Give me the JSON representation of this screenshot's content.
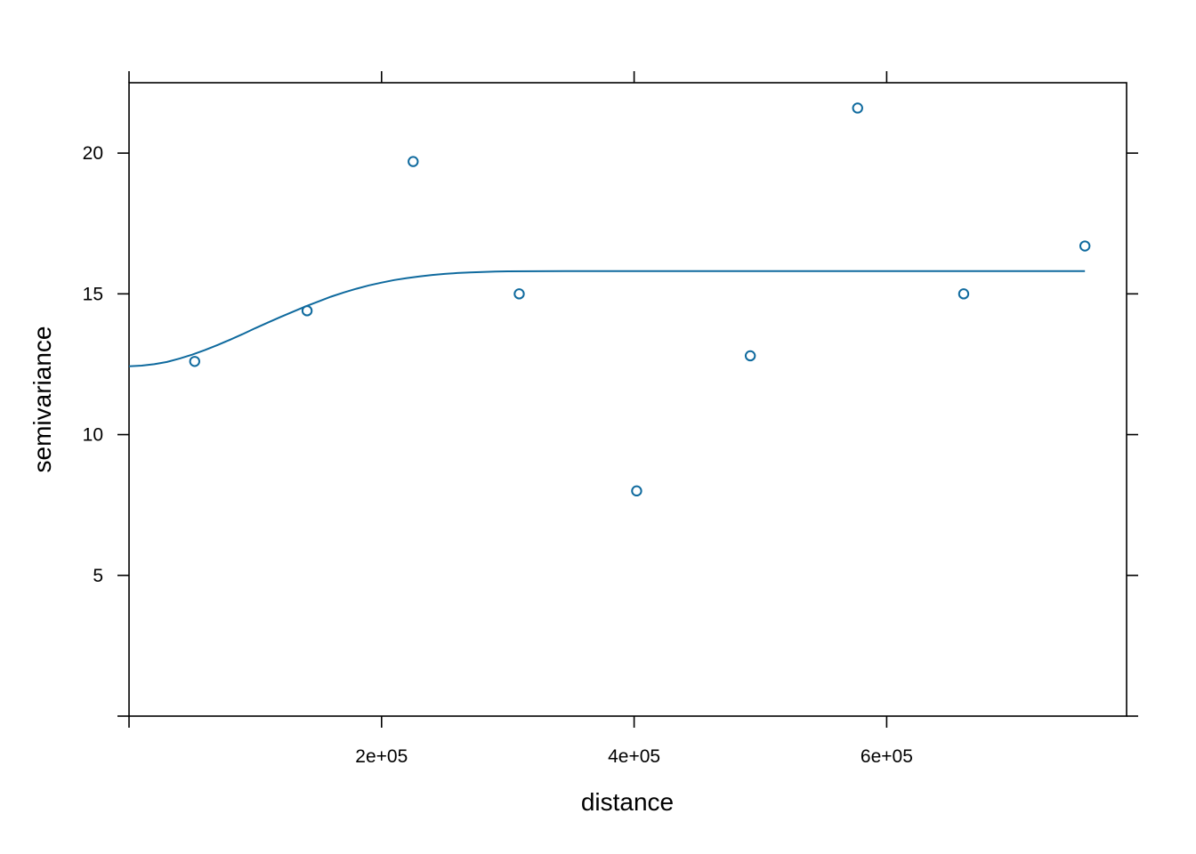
{
  "chart_data": {
    "type": "scatter",
    "xlabel": "distance",
    "ylabel": "semivariance",
    "xlim": [
      0,
      790000
    ],
    "ylim": [
      0,
      22.5
    ],
    "x_ticks": [
      200000,
      400000,
      600000
    ],
    "x_tick_labels": [
      "2e+05",
      "4e+05",
      "6e+05"
    ],
    "y_ticks": [
      5,
      10,
      15,
      20
    ],
    "y_tick_labels": [
      "5",
      "10",
      "15",
      "20"
    ],
    "grid": false,
    "series": [
      {
        "type": "points",
        "color": "#0F6A9E",
        "x": [
          52000,
          141000,
          225000,
          309000,
          402000,
          492000,
          577000,
          661000,
          757000
        ],
        "y": [
          12.6,
          14.4,
          19.7,
          15.0,
          8.0,
          12.8,
          21.6,
          15.0,
          16.7
        ]
      },
      {
        "type": "line",
        "color": "#0F6A9E",
        "x": [
          0,
          10000,
          20000,
          30000,
          40000,
          50000,
          60000,
          70000,
          80000,
          90000,
          100000,
          110000,
          120000,
          130000,
          140000,
          150000,
          160000,
          170000,
          180000,
          190000,
          200000,
          210000,
          220000,
          230000,
          240000,
          250000,
          260000,
          270000,
          280000,
          290000,
          300000,
          350000,
          400000,
          500000,
          600000,
          700000,
          757000
        ],
        "y": [
          12.43,
          12.45,
          12.5,
          12.58,
          12.7,
          12.84,
          13.0,
          13.18,
          13.37,
          13.57,
          13.78,
          13.98,
          14.18,
          14.37,
          14.56,
          14.73,
          14.9,
          15.05,
          15.18,
          15.3,
          15.4,
          15.49,
          15.56,
          15.62,
          15.67,
          15.71,
          15.74,
          15.76,
          15.78,
          15.79,
          15.8,
          15.81,
          15.81,
          15.81,
          15.81,
          15.81,
          15.81
        ]
      }
    ]
  }
}
